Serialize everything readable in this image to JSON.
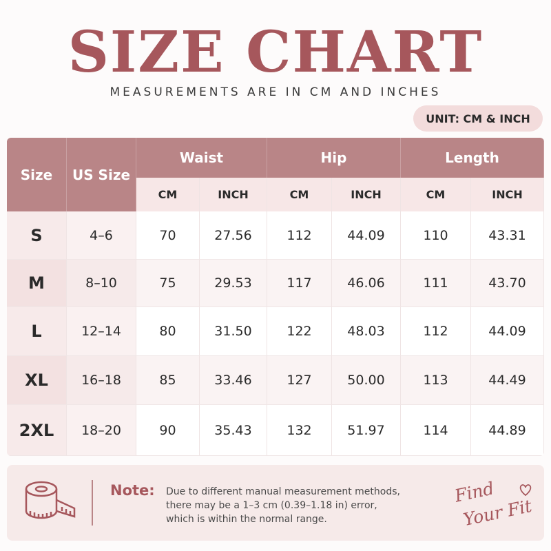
{
  "header": {
    "title": "SIZE CHART",
    "subtitle": "MEASUREMENTS ARE IN CM AND INCHES",
    "unit": "UNIT: CM & INCH"
  },
  "table": {
    "columns": [
      "Size",
      "US Size"
    ],
    "groups": [
      "Waist",
      "Hip",
      "Length"
    ],
    "subcolumns": [
      "CM",
      "INCH",
      "CM",
      "INCH",
      "CM",
      "INCH"
    ],
    "rows": [
      [
        "S",
        "4–6",
        "70",
        "27.56",
        "112",
        "44.09",
        "110",
        "43.31"
      ],
      [
        "M",
        "8–10",
        "75",
        "29.53",
        "117",
        "46.06",
        "111",
        "43.70"
      ],
      [
        "L",
        "12–14",
        "80",
        "31.50",
        "122",
        "48.03",
        "112",
        "44.09"
      ],
      [
        "XL",
        "16–18",
        "85",
        "33.46",
        "127",
        "50.00",
        "113",
        "44.49"
      ],
      [
        "2XL",
        "18–20",
        "90",
        "35.43",
        "132",
        "51.97",
        "114",
        "44.89"
      ]
    ]
  },
  "note": {
    "label": "Note:",
    "lines": [
      "Due to different manual measurement methods,",
      "there may be a 1–3 cm (0.39–1.18 in) error,",
      "which is within the normal range."
    ],
    "tagline": [
      "Find",
      "Your Fit"
    ]
  }
}
